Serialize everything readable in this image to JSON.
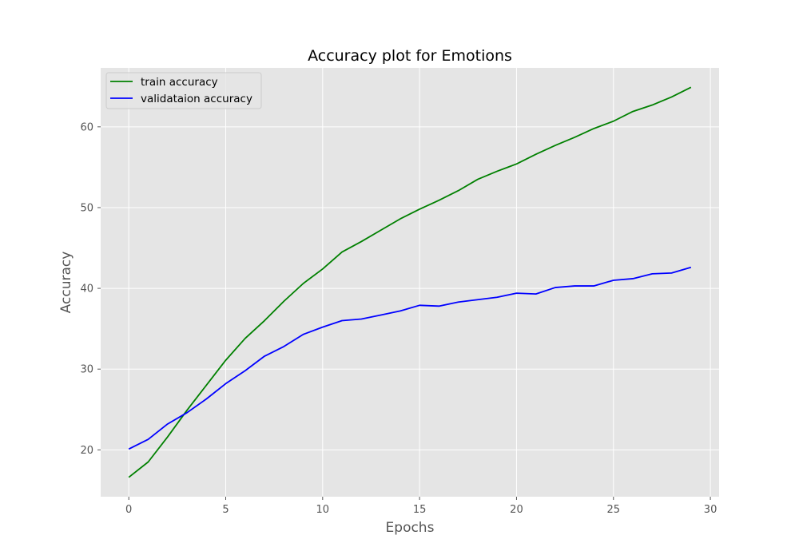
{
  "chart_data": {
    "type": "line",
    "title": "Accuracy plot for Emotions",
    "xlabel": "Epochs",
    "ylabel": "Accuracy",
    "xlim": [
      -1.45,
      30.45
    ],
    "ylim": [
      14.2,
      67.3
    ],
    "xticks": [
      0,
      5,
      10,
      15,
      20,
      25,
      30
    ],
    "yticks": [
      20,
      30,
      40,
      50,
      60
    ],
    "grid": true,
    "legend_position": "top-left",
    "x": [
      0,
      1,
      2,
      3,
      4,
      5,
      6,
      7,
      8,
      9,
      10,
      11,
      12,
      13,
      14,
      15,
      16,
      17,
      18,
      19,
      20,
      21,
      22,
      23,
      24,
      25,
      26,
      27,
      28,
      29
    ],
    "series": [
      {
        "name": "train accuracy",
        "color": "#008000",
        "values": [
          16.6,
          18.5,
          21.6,
          24.9,
          28.0,
          31.1,
          33.8,
          36.0,
          38.4,
          40.6,
          42.4,
          44.5,
          45.8,
          47.2,
          48.6,
          49.8,
          50.9,
          52.1,
          53.5,
          54.5,
          55.4,
          56.6,
          57.7,
          58.7,
          59.8,
          60.7,
          61.9,
          62.7,
          63.7,
          64.9
        ]
      },
      {
        "name": "validataion accuracy",
        "color": "#0000ff",
        "values": [
          20.1,
          21.3,
          23.2,
          24.6,
          26.3,
          28.2,
          29.8,
          31.6,
          32.8,
          34.3,
          35.2,
          36.0,
          36.2,
          36.7,
          37.2,
          37.9,
          37.8,
          38.3,
          38.6,
          38.9,
          39.4,
          39.3,
          40.1,
          40.3,
          40.3,
          41.0,
          41.2,
          41.8,
          41.9,
          42.6
        ]
      }
    ]
  },
  "colors": {
    "plot_background": "#e5e5e5",
    "grid": "#ffffff",
    "tick_label": "#555555"
  }
}
